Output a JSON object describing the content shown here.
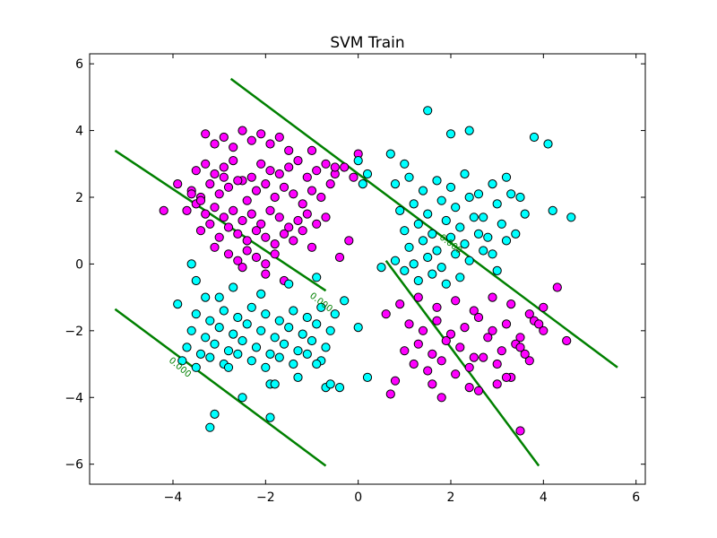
{
  "chart_data": {
    "type": "scatter",
    "title": "SVM Train",
    "xlabel": "",
    "ylabel": "",
    "xlim": [
      -5.8,
      6.2
    ],
    "ylim": [
      -6.6,
      6.3
    ],
    "xticks": [
      -4,
      -2,
      0,
      2,
      4,
      6
    ],
    "yticks": [
      -6,
      -4,
      -2,
      0,
      2,
      4,
      6
    ],
    "xtick_labels": [
      "−4",
      "−2",
      "0",
      "2",
      "4",
      "6"
    ],
    "ytick_labels": [
      "−6",
      "−4",
      "−2",
      "0",
      "2",
      "4",
      "6"
    ],
    "grid": false,
    "legend": "none",
    "colors": {
      "class_a": "#ff00ff",
      "class_b": "#00ffff",
      "contour": "#008000",
      "point_edge": "#000000"
    },
    "contour_lines": [
      {
        "label": "0.000",
        "points": [
          [
            -2.75,
            5.55
          ],
          [
            5.6,
            -3.1
          ]
        ]
      },
      {
        "label": "",
        "points": [
          [
            -5.25,
            3.4
          ],
          [
            -0.7,
            -0.8
          ]
        ]
      },
      {
        "label": "",
        "points": [
          [
            0.6,
            0.1
          ],
          [
            3.9,
            -6.05
          ]
        ]
      },
      {
        "label": "0.000",
        "points": [
          [
            -5.25,
            -1.35
          ],
          [
            -0.7,
            -6.05
          ]
        ]
      }
    ],
    "contour_label_positions": [
      {
        "text": "0.000",
        "x": 2.0,
        "y": 0.6,
        "angle": 37
      },
      {
        "text": "0.000",
        "x": -0.8,
        "y": -1.15,
        "angle": 37
      },
      {
        "text": "0.000",
        "x": -3.85,
        "y": -3.1,
        "angle": 40
      }
    ],
    "series": [
      {
        "class": "a",
        "x": [
          -3.5,
          -3.3,
          -3.1,
          -2.9,
          -2.7,
          -2.5,
          -2.3,
          -2.1,
          -1.9,
          -1.7,
          -1.5,
          -1.3,
          -1.1,
          -0.9,
          -0.7,
          -0.5,
          -0.3,
          -0.1,
          -3.6,
          -3.4,
          -3.2,
          -3.0,
          -2.8,
          -2.6,
          -2.4,
          -2.2,
          -2.0,
          -1.8,
          -1.6,
          -1.4,
          -1.2,
          -1.0,
          -0.8,
          -0.6,
          -3.7,
          -3.5,
          -3.3,
          -3.1,
          -2.9,
          -2.7,
          -2.5,
          -2.3,
          -2.1,
          -1.9,
          -1.7,
          -1.5,
          -1.3,
          -1.1,
          -0.9,
          -0.7,
          -3.4,
          -3.2,
          -3.0,
          -2.8,
          -2.6,
          -2.4,
          -2.2,
          -2.0,
          -1.8,
          -1.6,
          -1.4,
          -1.2,
          -1.0,
          -3.3,
          -3.1,
          -2.9,
          -2.7,
          -2.5,
          -2.3,
          -2.1,
          -1.9,
          -1.7,
          -1.5,
          -2.8,
          -2.6,
          -2.4,
          -2.2,
          -2.0,
          -1.8,
          -4.2,
          -3.9,
          -3.6,
          -3.4,
          -2.9,
          -1.0,
          -0.5,
          0.0,
          -0.2,
          -0.4,
          -3.1,
          -2.5,
          -2.0,
          -1.6,
          1.0,
          1.3,
          1.6,
          1.9,
          2.2,
          2.5,
          2.8,
          3.1,
          3.4,
          3.7,
          1.1,
          1.4,
          1.7,
          2.0,
          2.3,
          2.6,
          2.9,
          3.2,
          3.5,
          3.8,
          1.2,
          1.5,
          1.8,
          2.1,
          2.4,
          2.7,
          3.0,
          3.3,
          3.6,
          0.9,
          1.3,
          1.7,
          2.1,
          2.5,
          2.9,
          3.3,
          3.7,
          4.0,
          0.8,
          1.6,
          2.4,
          3.2,
          0.6,
          0.7,
          3.0,
          3.5,
          4.0,
          4.3,
          4.5,
          3.9,
          2.6,
          1.8,
          3.5
        ],
        "y": [
          2.8,
          3.0,
          2.7,
          2.9,
          3.1,
          2.5,
          2.6,
          3.0,
          2.8,
          2.7,
          2.9,
          3.1,
          2.6,
          2.8,
          3.0,
          2.7,
          2.9,
          2.6,
          2.2,
          2.0,
          2.4,
          2.1,
          2.3,
          2.5,
          1.9,
          2.2,
          2.4,
          2.0,
          2.3,
          2.1,
          1.8,
          2.2,
          2.0,
          2.4,
          1.6,
          1.8,
          1.5,
          1.7,
          1.4,
          1.6,
          1.3,
          1.5,
          1.2,
          1.6,
          1.4,
          1.1,
          1.3,
          1.5,
          1.2,
          1.4,
          1.0,
          1.2,
          0.8,
          1.1,
          0.9,
          0.7,
          1.0,
          0.8,
          0.6,
          0.9,
          0.7,
          1.0,
          0.5,
          3.9,
          3.6,
          3.8,
          3.5,
          4.0,
          3.7,
          3.9,
          3.6,
          3.8,
          3.4,
          0.3,
          0.1,
          0.4,
          0.2,
          0.0,
          0.3,
          1.6,
          2.4,
          2.1,
          1.9,
          2.6,
          3.4,
          2.9,
          3.3,
          0.7,
          0.2,
          0.5,
          -0.1,
          -0.3,
          -0.5,
          -2.6,
          -2.4,
          -2.7,
          -2.3,
          -2.5,
          -2.8,
          -2.2,
          -2.6,
          -2.4,
          -2.9,
          -1.8,
          -2.0,
          -1.7,
          -2.1,
          -1.9,
          -1.6,
          -2.0,
          -1.8,
          -2.2,
          -1.7,
          -3.0,
          -3.2,
          -2.9,
          -3.3,
          -3.1,
          -2.8,
          -3.0,
          -3.4,
          -2.7,
          -1.2,
          -1.0,
          -1.3,
          -1.1,
          -1.4,
          -1.0,
          -1.2,
          -1.5,
          -1.3,
          -3.5,
          -3.6,
          -3.7,
          -3.4,
          -1.5,
          -3.9,
          -3.6,
          -2.5,
          -2.0,
          -0.7,
          -2.3,
          -1.8,
          -3.8,
          -4.0,
          -5.0
        ],
        "color": "#ff00ff"
      },
      {
        "class": "b",
        "x": [
          0.8,
          1.1,
          1.4,
          1.7,
          2.0,
          2.3,
          2.6,
          2.9,
          3.2,
          3.5,
          0.9,
          1.2,
          1.5,
          1.8,
          2.1,
          2.4,
          2.7,
          3.0,
          3.3,
          3.6,
          1.0,
          1.3,
          1.6,
          1.9,
          2.2,
          2.5,
          2.8,
          3.1,
          3.4,
          1.1,
          1.4,
          1.7,
          2.0,
          2.3,
          2.6,
          2.9,
          3.2,
          1.2,
          1.5,
          1.8,
          2.1,
          2.4,
          2.7,
          3.0,
          1.3,
          1.6,
          1.9,
          2.2,
          0.7,
          1.0,
          4.1,
          4.6,
          4.2,
          3.8,
          1.5,
          2.0,
          2.4,
          0.2,
          0.0,
          0.1,
          -3.5,
          -3.2,
          -2.9,
          -2.6,
          -2.3,
          -2.0,
          -1.7,
          -1.4,
          -1.1,
          -0.8,
          -0.5,
          -3.6,
          -3.3,
          -3.0,
          -2.7,
          -2.4,
          -2.1,
          -1.8,
          -1.5,
          -1.2,
          -0.9,
          -0.6,
          -3.7,
          -3.4,
          -3.1,
          -2.8,
          -2.5,
          -2.2,
          -1.9,
          -1.6,
          -1.3,
          -1.0,
          -0.7,
          -3.8,
          -3.5,
          -3.2,
          -2.9,
          -2.6,
          -2.3,
          -2.0,
          -1.7,
          -1.4,
          -1.1,
          -0.8,
          -3.9,
          -3.3,
          -2.7,
          -2.1,
          -1.5,
          -0.9,
          -0.3,
          0.0,
          -3.1,
          -2.5,
          -1.9,
          -1.3,
          -0.7,
          -0.4,
          -3.2,
          -2.8,
          -1.9,
          -1.8,
          -0.9,
          -0.6,
          0.2,
          -3.6,
          -3.5,
          -3.0,
          0.5,
          0.8,
          1.0
        ],
        "y": [
          2.4,
          2.6,
          2.2,
          2.5,
          2.3,
          2.7,
          2.1,
          2.4,
          2.6,
          2.0,
          1.6,
          1.8,
          1.5,
          1.9,
          1.7,
          2.0,
          1.4,
          1.8,
          2.1,
          1.5,
          1.0,
          1.2,
          0.9,
          1.3,
          1.1,
          1.4,
          0.8,
          1.2,
          0.9,
          0.5,
          0.7,
          0.4,
          0.8,
          0.6,
          0.9,
          0.3,
          0.7,
          0.0,
          0.2,
          -0.1,
          0.3,
          0.1,
          0.4,
          -0.2,
          -0.5,
          -0.3,
          -0.6,
          -0.4,
          3.3,
          3.0,
          3.6,
          1.4,
          1.6,
          3.8,
          4.6,
          3.9,
          4.0,
          2.7,
          3.1,
          2.4,
          -1.5,
          -1.7,
          -1.4,
          -1.6,
          -1.3,
          -1.5,
          -1.7,
          -1.4,
          -1.6,
          -1.3,
          -1.5,
          -2.0,
          -2.2,
          -1.9,
          -2.1,
          -1.8,
          -2.0,
          -2.2,
          -1.9,
          -2.1,
          -1.8,
          -2.0,
          -2.5,
          -2.7,
          -2.4,
          -2.6,
          -2.3,
          -2.5,
          -2.7,
          -2.4,
          -2.6,
          -2.3,
          -2.5,
          -2.9,
          -3.1,
          -2.8,
          -3.0,
          -2.7,
          -2.9,
          -3.1,
          -2.8,
          -3.0,
          -2.7,
          -2.9,
          -1.2,
          -1.0,
          -0.7,
          -0.9,
          -0.6,
          -0.4,
          -1.1,
          -1.9,
          -4.5,
          -4.0,
          -3.6,
          -3.4,
          -3.7,
          -3.7,
          -4.9,
          -3.1,
          -4.6,
          -3.6,
          -3.0,
          -3.6,
          -3.4,
          0.0,
          -0.5,
          -1.0,
          -0.1,
          0.1,
          -0.2
        ],
        "color": "#00ffff"
      }
    ]
  }
}
